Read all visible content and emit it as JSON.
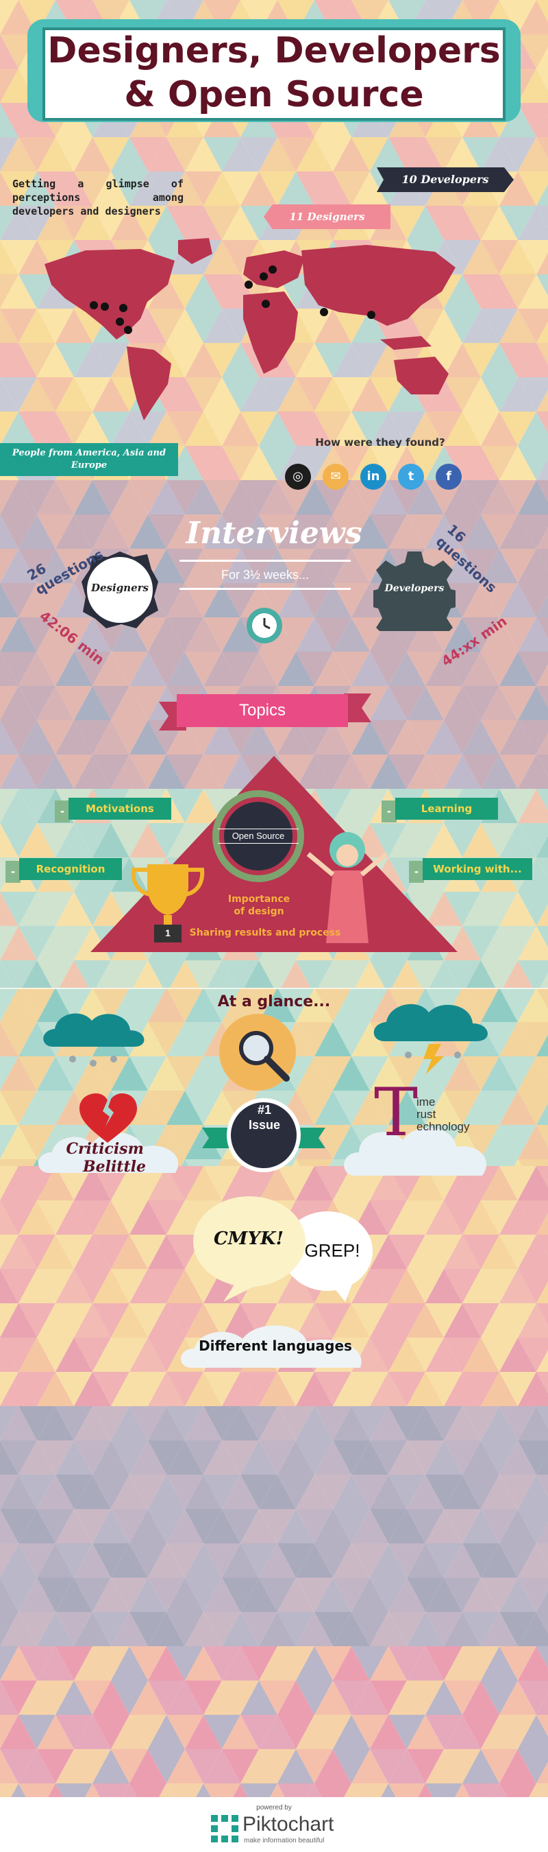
{
  "title": {
    "line1": "Designers, Developers",
    "line2": "& Open Source"
  },
  "intro": {
    "glimpse_text": "Getting a glimpse of perceptions among developers and designers",
    "developers_count_label": "10 Developers",
    "designers_count_label": "11 Designers",
    "regions_label_line1": "People from America, Asia and",
    "regions_label_line2": "Europe",
    "found_title": "How were they found?",
    "channels": [
      {
        "icon": "github-icon",
        "glyph": "◎",
        "color": "#1d1d1d"
      },
      {
        "icon": "email-icon",
        "glyph": "✉",
        "color": "#f3b24e"
      },
      {
        "icon": "linkedin-icon",
        "glyph": "in",
        "color": "#1b8fc9"
      },
      {
        "icon": "twitter-icon",
        "glyph": "t",
        "color": "#3aa5e0"
      },
      {
        "icon": "facebook-icon",
        "glyph": "f",
        "color": "#3b64b0"
      }
    ]
  },
  "interviews": {
    "title": "Interviews",
    "duration": "For 3½ weeks...",
    "designers": {
      "label": "Designers",
      "questions": "26 questions",
      "time": "42:06 min"
    },
    "developers": {
      "label": "Developers",
      "questions": "16 questions",
      "time": "44:xx min"
    }
  },
  "topics": {
    "title": "Topics",
    "items": [
      "Motivations",
      "Learning",
      "Recognition",
      "Working with..."
    ],
    "tag_marker": "-",
    "center_label": "Open Source",
    "importance_line1": "Importance",
    "importance_line2": "of design",
    "sharing": "Sharing results and process",
    "trophy_number": "1"
  },
  "glance": {
    "title": "At a glance...",
    "criticism": "Criticism",
    "belittle": "Belittle",
    "issue_line1": "#1",
    "issue_line2": "Issue",
    "ttt_big": "T",
    "ttt_lines": [
      "ime",
      "rust",
      "echnology"
    ],
    "cmyk": "CMYK!",
    "grep": "GREP!",
    "different_languages": "Different languages"
  },
  "footer": {
    "powered_by": "powered by",
    "brand": "Piktochart",
    "tagline": "make information beautiful"
  },
  "colors": {
    "title_text": "#5e1224",
    "teal": "#4bbfb8",
    "map": "#b8344f",
    "topics_pink": "#e94c85",
    "tag_green": "#1a9e77"
  }
}
